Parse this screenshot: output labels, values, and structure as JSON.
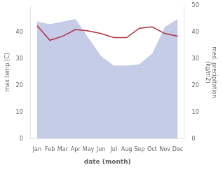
{
  "chart_data": {
    "type": "line",
    "categories": [
      "Jan",
      "Feb",
      "Mar",
      "Apr",
      "May",
      "Jun",
      "Jul",
      "Aug",
      "Sep",
      "Oct",
      "Nov",
      "Dec"
    ],
    "series": [
      {
        "type": "line",
        "color": "#b03040",
        "axis": "y",
        "values": [
          42.5,
          37.0,
          38.5,
          41.0,
          40.5,
          39.5,
          38.0,
          38.0,
          41.5,
          42.0,
          39.5,
          38.5
        ]
      },
      {
        "type": "area",
        "color": "#c5cce8",
        "axis": "y2",
        "values": [
          44,
          43,
          44,
          45,
          38,
          31,
          27.5,
          27.5,
          28,
          32,
          42,
          45
        ]
      }
    ],
    "xlabel": "date (month)",
    "ylabel": "max temp (C)",
    "y2label": "med. precipitation\n(kg/m2)",
    "ylim": [
      0,
      50
    ],
    "yticks": [
      0,
      10,
      20,
      30,
      40
    ],
    "y2lim": [
      0,
      50
    ],
    "y2ticks": [
      0,
      10,
      20,
      30,
      40,
      50
    ],
    "grid": false
  }
}
